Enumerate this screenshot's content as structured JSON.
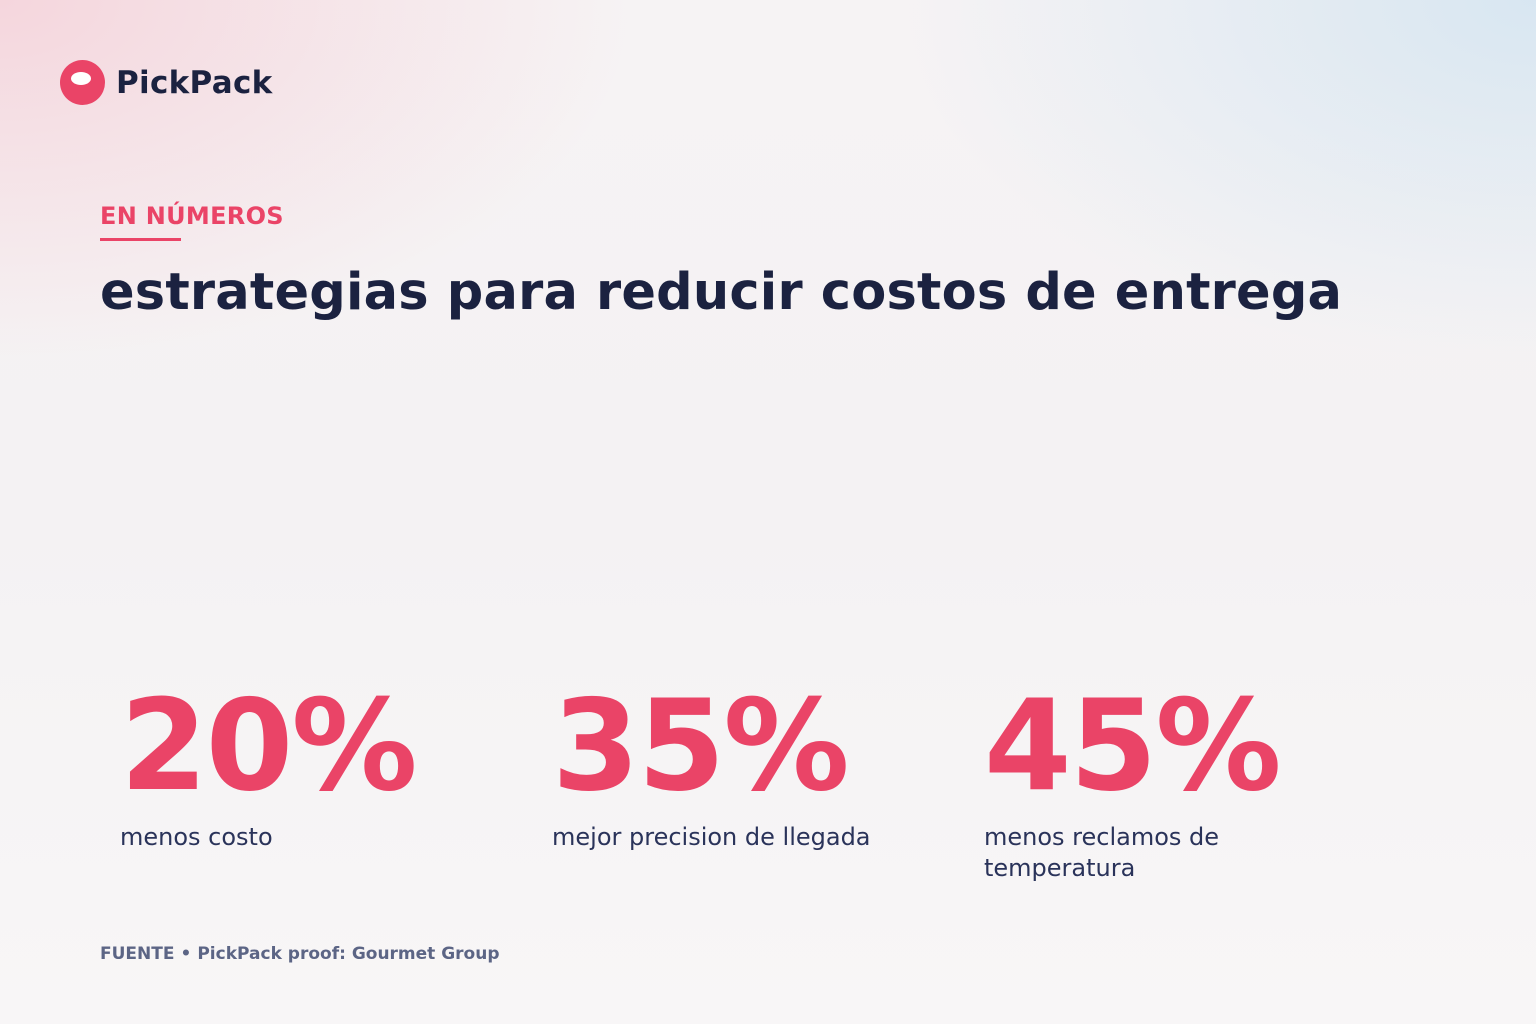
{
  "brand": {
    "name": "PickPack",
    "color": "#ea4467"
  },
  "header": {
    "eyebrow": "EN NÚMEROS",
    "title": "estrategias para reducir costos de entrega"
  },
  "stats": [
    {
      "value": "20%",
      "label": "menos costo"
    },
    {
      "value": "35%",
      "label": "mejor precision de llegada"
    },
    {
      "value": "45%",
      "label": "menos reclamos de temperatura"
    }
  ],
  "source": {
    "label": "FUENTE",
    "separator": "•",
    "text": "PickPack proof: Gourmet Group"
  }
}
